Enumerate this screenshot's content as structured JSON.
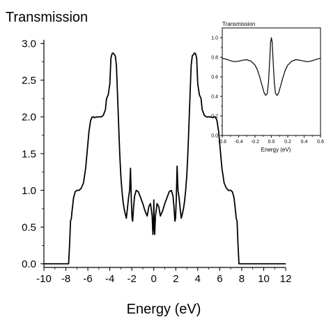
{
  "chart_data": [
    {
      "type": "line",
      "title": "",
      "ylabel": "Transmission",
      "xlabel": "Energy (eV)",
      "xlim": [
        -10,
        12
      ],
      "ylim": [
        -0.05,
        3.05
      ],
      "x_ticks": [
        -10,
        -8,
        -6,
        -4,
        -2,
        0,
        2,
        4,
        6,
        8,
        10,
        12
      ],
      "x_tick_labels": [
        "-10",
        "-8",
        "-6",
        "-4",
        "-2",
        "0",
        "2",
        "4",
        "6",
        "8",
        "10",
        "12"
      ],
      "y_ticks": [
        0.0,
        0.5,
        1.0,
        1.5,
        2.0,
        2.5,
        3.0
      ],
      "y_tick_labels": [
        "0.0",
        "0.5",
        "1.0",
        "1.5",
        "2.0",
        "2.5",
        "3.0"
      ],
      "grid": false,
      "legend": "none",
      "series": [
        {
          "color": "#000000",
          "x": [
            -10,
            -7.75,
            -7.65,
            -7.58,
            -7.5,
            -7.45,
            -7.3,
            -7.15,
            -7.0,
            -6.8,
            -6.6,
            -6.4,
            -6.2,
            -6.05,
            -5.9,
            -5.75,
            -5.6,
            -5.5,
            -5.4,
            -5.2,
            -5.0,
            -4.8,
            -4.6,
            -4.4,
            -4.3,
            -4.15,
            -4.0,
            -3.9,
            -3.8,
            -3.7,
            -3.6,
            -3.5,
            -3.4,
            -3.3,
            -3.2,
            -3.1,
            -3.0,
            -2.9,
            -2.8,
            -2.7,
            -2.6,
            -2.5,
            -2.4,
            -2.3,
            -2.2,
            -2.12,
            -2.05,
            -1.98,
            -1.92,
            -1.85,
            -1.75,
            -1.6,
            -1.4,
            -1.2,
            -1.0,
            -0.8,
            -0.6,
            -0.45,
            -0.3,
            -0.15,
            -0.08,
            -0.03,
            0,
            0.03,
            0.08,
            0.15,
            0.3,
            0.45,
            0.6,
            0.8,
            1.0,
            1.2,
            1.4,
            1.6,
            1.75,
            1.85,
            1.92,
            1.98,
            2.05,
            2.12,
            2.2,
            2.3,
            2.4,
            2.5,
            2.6,
            2.7,
            2.8,
            2.9,
            3.0,
            3.1,
            3.2,
            3.3,
            3.4,
            3.5,
            3.6,
            3.7,
            3.8,
            3.9,
            4.0,
            4.15,
            4.3,
            4.4,
            4.6,
            4.8,
            5.0,
            5.2,
            5.4,
            5.5,
            5.6,
            5.75,
            5.9,
            6.05,
            6.2,
            6.4,
            6.6,
            6.8,
            7.0,
            7.15,
            7.3,
            7.45,
            7.5,
            7.58,
            7.65,
            7.75,
            12
          ],
          "y": [
            0.0,
            0.0,
            0.3,
            0.58,
            0.62,
            0.7,
            0.9,
            0.98,
            1.0,
            1.0,
            1.03,
            1.1,
            1.3,
            1.55,
            1.8,
            1.95,
            2.0,
            2.0,
            1.99,
            2.0,
            2.0,
            2.0,
            2.02,
            2.1,
            2.25,
            2.3,
            2.45,
            2.8,
            2.86,
            2.87,
            2.85,
            2.83,
            2.7,
            2.3,
            1.9,
            1.5,
            1.2,
            1.0,
            0.85,
            0.75,
            0.68,
            0.62,
            0.75,
            0.9,
            1.0,
            1.3,
            0.9,
            0.62,
            0.58,
            0.75,
            0.92,
            1.0,
            0.98,
            0.9,
            0.82,
            0.72,
            0.65,
            0.78,
            0.82,
            0.65,
            0.4,
            0.55,
            0.87,
            0.55,
            0.4,
            0.65,
            0.82,
            0.78,
            0.65,
            0.72,
            0.82,
            0.9,
            0.98,
            1.0,
            0.92,
            0.75,
            0.58,
            0.62,
            0.9,
            1.33,
            1.0,
            0.9,
            0.75,
            0.62,
            0.68,
            0.75,
            0.85,
            1.0,
            1.2,
            1.5,
            1.9,
            2.3,
            2.7,
            2.83,
            2.85,
            2.87,
            2.86,
            2.8,
            2.45,
            2.3,
            2.25,
            2.1,
            2.02,
            2.0,
            2.0,
            2.0,
            1.99,
            2.0,
            2.0,
            1.95,
            1.8,
            1.55,
            1.3,
            1.1,
            1.03,
            1.0,
            1.0,
            0.98,
            0.9,
            0.7,
            0.62,
            0.58,
            0.3,
            0.0,
            0.0
          ]
        }
      ]
    },
    {
      "type": "line",
      "title": "",
      "ylabel": "Transmission",
      "xlabel": "Energy (eV)",
      "xlim": [
        -0.6,
        0.6
      ],
      "ylim": [
        0.0,
        1.1
      ],
      "x_ticks": [
        -0.6,
        -0.4,
        -0.2,
        0.0,
        0.2,
        0.4,
        0.6
      ],
      "x_tick_labels": [
        "-0.6",
        "-0.4",
        "-0.2",
        "0.0",
        "0.2",
        "0.4",
        "0.6"
      ],
      "y_ticks": [
        0.0,
        0.2,
        0.4,
        0.6,
        0.8,
        1.0
      ],
      "y_tick_labels": [
        "0.0",
        "0.2",
        "0.4",
        "0.6",
        "0.8",
        "1.0"
      ],
      "grid": false,
      "legend": "none",
      "series": [
        {
          "color": "#000000",
          "x": [
            -0.6,
            -0.55,
            -0.5,
            -0.45,
            -0.4,
            -0.35,
            -0.3,
            -0.25,
            -0.2,
            -0.17,
            -0.14,
            -0.11,
            -0.09,
            -0.07,
            -0.05,
            -0.035,
            -0.02,
            -0.01,
            0.0,
            0.01,
            0.02,
            0.035,
            0.05,
            0.07,
            0.09,
            0.11,
            0.14,
            0.17,
            0.2,
            0.25,
            0.3,
            0.35,
            0.4,
            0.45,
            0.5,
            0.55,
            0.6
          ],
          "y": [
            0.79,
            0.78,
            0.765,
            0.755,
            0.76,
            0.77,
            0.775,
            0.76,
            0.72,
            0.67,
            0.59,
            0.5,
            0.44,
            0.41,
            0.43,
            0.55,
            0.78,
            0.95,
            1.0,
            0.95,
            0.78,
            0.55,
            0.43,
            0.41,
            0.44,
            0.5,
            0.59,
            0.67,
            0.72,
            0.76,
            0.775,
            0.77,
            0.76,
            0.755,
            0.765,
            0.78,
            0.79
          ]
        }
      ]
    }
  ]
}
